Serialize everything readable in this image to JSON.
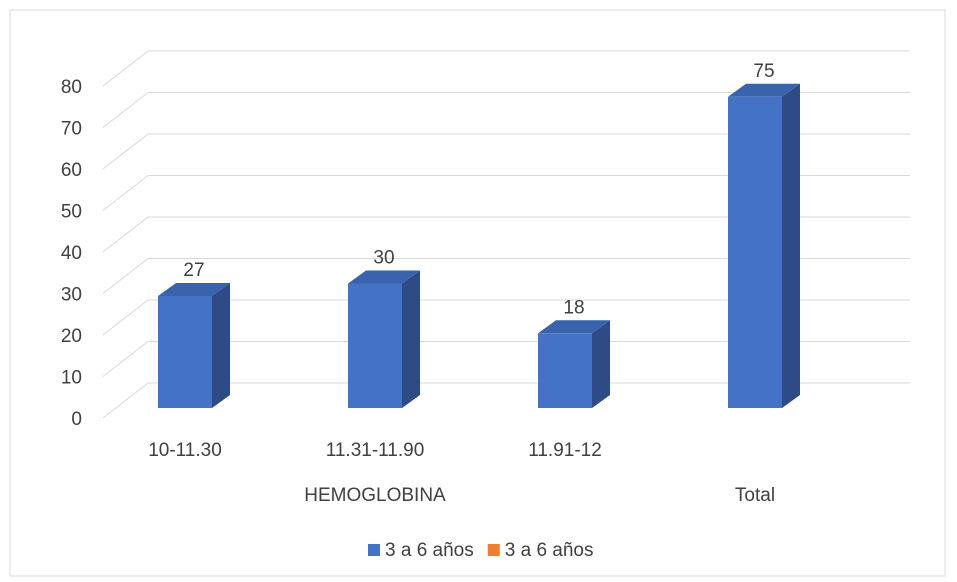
{
  "chart_data": {
    "type": "bar3d",
    "categories": [
      "10-11.30",
      "11.31-11.90",
      "11.91-12",
      null
    ],
    "category_groups": [
      "HEMOGLOBINA",
      "Total"
    ],
    "series": [
      {
        "name": "3 a 6 años",
        "color": "#4472c4",
        "values": [
          27,
          30,
          18,
          75
        ]
      },
      {
        "name": "3 a 6 años",
        "color": "#ed7d31",
        "values": [
          null,
          null,
          null,
          null
        ]
      }
    ],
    "ylim": [
      0,
      80
    ],
    "yticks": [
      0,
      10,
      20,
      30,
      40,
      50,
      60,
      70,
      80
    ],
    "grid": true,
    "legend": "bottom"
  }
}
